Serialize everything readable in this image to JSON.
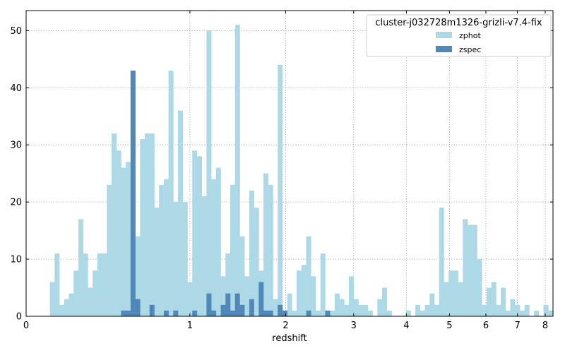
{
  "chart_data": {
    "type": "bar",
    "title": "",
    "xlabel": "redshift",
    "ylabel": "",
    "x_scale": "log(1+z)",
    "xlim": [
      0,
      8.3
    ],
    "ylim": [
      0,
      53.5
    ],
    "x_ticks": [
      0,
      1,
      2,
      3,
      4,
      5,
      6,
      7,
      8
    ],
    "y_ticks": [
      0,
      10,
      20,
      30,
      40,
      50
    ],
    "grid": true,
    "legend_title": "cluster-j032728m1326-grizli-v7.4-fix",
    "legend_position": "top-right",
    "bin_count": 111,
    "series": [
      {
        "name": "zphot",
        "color": "#add8e6",
        "values": [
          0,
          0,
          0,
          0,
          0,
          6,
          11,
          2,
          3,
          4,
          8,
          17,
          11,
          5,
          8,
          11,
          11,
          23,
          32,
          29,
          26,
          27,
          43,
          14,
          31,
          32,
          32,
          19,
          23,
          24,
          43,
          20,
          36,
          20,
          6,
          29,
          28,
          21,
          50,
          24,
          26,
          7,
          11,
          23,
          51,
          14,
          7,
          22,
          19,
          8,
          25,
          23,
          3,
          44,
          1,
          4,
          1,
          8,
          9,
          14,
          7,
          1,
          11,
          1,
          1,
          4,
          3,
          2,
          7,
          3,
          2,
          2,
          1,
          0,
          3,
          5,
          1,
          0,
          0,
          0,
          1,
          0,
          2,
          1,
          2,
          4,
          2,
          19,
          6,
          8,
          8,
          6,
          17,
          16,
          16,
          10,
          2,
          5,
          6,
          2,
          5,
          1,
          3,
          2,
          1,
          2,
          0,
          1,
          0,
          2,
          1
        ]
      },
      {
        "name": "zspec",
        "color": "#4f88b9",
        "values": [
          0,
          0,
          0,
          0,
          0,
          0,
          0,
          0,
          0,
          0,
          0,
          0,
          0,
          0,
          0,
          0,
          0,
          0,
          0,
          0,
          1,
          1,
          43,
          3,
          0,
          0,
          2,
          0,
          0,
          1,
          0,
          1,
          0,
          0,
          0,
          1,
          0,
          0,
          4,
          1,
          0,
          2,
          4,
          1,
          4,
          2,
          0,
          3,
          0,
          6,
          1,
          1,
          0,
          2,
          1,
          0,
          0,
          0,
          0,
          1,
          0,
          0,
          0,
          1,
          0,
          0,
          0,
          0,
          0,
          0,
          0,
          0,
          0,
          0,
          0,
          0,
          0,
          0,
          0,
          0,
          0,
          0,
          0,
          0,
          0,
          0,
          0,
          0,
          0,
          0,
          0,
          0,
          0,
          0,
          0,
          0,
          0,
          0,
          0,
          0,
          0,
          0,
          0,
          0,
          0,
          0,
          0,
          0,
          0,
          0,
          0
        ]
      }
    ]
  }
}
